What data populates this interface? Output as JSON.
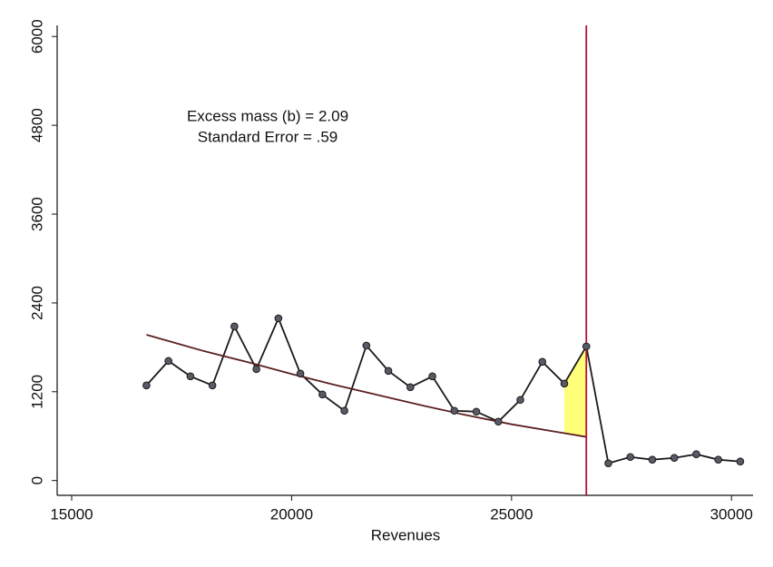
{
  "chart_data": {
    "type": "line",
    "x_label": "Revenues",
    "annotations": [
      "Excess mass (b) = 2.09",
      "Standard Error = .59"
    ],
    "xlim": [
      14670,
      30490
    ],
    "ylim": [
      -200,
      6150
    ],
    "xticks": [
      15000,
      20000,
      25000,
      30000
    ],
    "yticks": [
      0,
      1200,
      2400,
      3600,
      4800,
      6000
    ],
    "series": [
      {
        "color": "#1a1a1a",
        "marker_color": "#5a5a66",
        "markers": true,
        "x": [
          16700,
          17200,
          17700,
          18200,
          18700,
          19200,
          19700,
          20200,
          20700,
          21200,
          21700,
          22200,
          22700,
          23200,
          23700,
          24200,
          24700,
          25200,
          25700,
          26200,
          26700,
          27200,
          27700,
          28200,
          28700,
          29200,
          29700,
          30200
        ],
        "values": [
          1286,
          1616,
          1408,
          1286,
          2082,
          1506,
          2192,
          1445,
          1163,
          943,
          1824,
          1482,
          1261,
          1408,
          943,
          931,
          796,
          1090,
          1604,
          1310,
          1812,
          233,
          318,
          282,
          306,
          355,
          282,
          257
        ]
      },
      {
        "color": "#5c1f1f",
        "markers": false,
        "x": [
          16700,
          18000,
          19000,
          20000,
          21000,
          22000,
          23000,
          24000,
          25000,
          26000,
          26700
        ],
        "values": [
          1970,
          1750,
          1600,
          1440,
          1290,
          1150,
          1010,
          880,
          760,
          660,
          590
        ]
      }
    ],
    "shade_xlim": [
      26200,
      26700
    ],
    "shade_color": "#ffff7a",
    "cutoff": 26700,
    "cutoff_color": "#b01030"
  }
}
